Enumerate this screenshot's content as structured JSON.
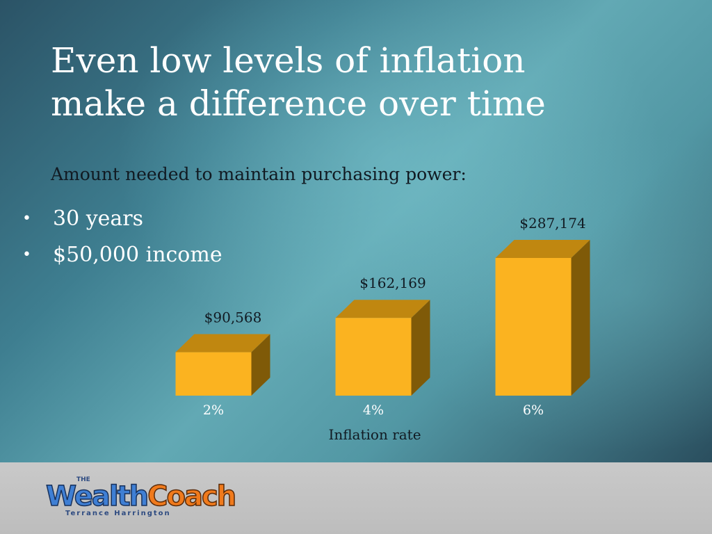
{
  "slide": {
    "title_line1": "Even low levels of inflation",
    "title_line2": "make a difference over time",
    "subtitle": "Amount needed to maintain purchasing power:",
    "bullets": [
      "30 years",
      "$50,000 income"
    ]
  },
  "chart_data": {
    "type": "bar",
    "categories": [
      "2%",
      "4%",
      "6%"
    ],
    "values": [
      90568,
      162169,
      287174
    ],
    "data_labels": [
      "$90,568",
      "$162,169",
      "$287,174"
    ],
    "xlabel": "Inflation rate",
    "ylabel": "",
    "ylim": [
      0,
      287174
    ],
    "grid": false,
    "style": "3d",
    "colors": {
      "front": "#fbb320",
      "top": "#c08710",
      "side": "#7f5a08"
    }
  },
  "footer": {
    "logo_the": "THE",
    "logo_word1": "Wealth",
    "logo_word2": "Coach",
    "logo_sub": "Terrance Harrington",
    "logo_colors": {
      "word1": "#3f7fd4",
      "word2": "#f07a1c"
    }
  }
}
